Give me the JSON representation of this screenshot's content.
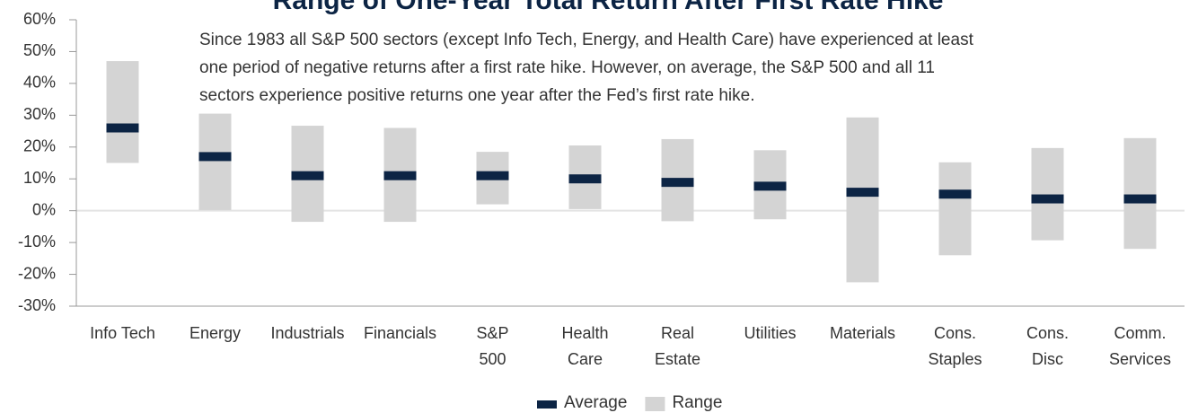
{
  "chart_data": {
    "type": "floating-bar",
    "title": "Range of One-Year Total Return After First Rate Hike",
    "subtitle": [
      "Since 1983 all S&P 500 sectors (except Info Tech, Energy, and Health Care) have experienced at least",
      "one period of negative returns after a first rate hike. However, on average, the S&P 500 and all 11",
      "sectors experience positive returns one year after the Fed’s first rate hike."
    ],
    "categories": [
      [
        "Info Tech"
      ],
      [
        "Energy"
      ],
      [
        "Industrials"
      ],
      [
        "Financials"
      ],
      [
        "S&P",
        "500"
      ],
      [
        "Health",
        "Care"
      ],
      [
        "Real",
        "Estate"
      ],
      [
        "Utilities"
      ],
      [
        "Materials"
      ],
      [
        "Cons.",
        "Staples"
      ],
      [
        "Cons.",
        "Disc"
      ],
      [
        "Comm.",
        "Services"
      ]
    ],
    "series": [
      {
        "name": "Average",
        "color": "#0c2444",
        "values": [
          26,
          17,
          11,
          11,
          11,
          10,
          8.9,
          7.7,
          5.8,
          5.2,
          3.7,
          3.7
        ]
      },
      {
        "name": "Range",
        "color": "#d4d4d4",
        "low": [
          15,
          0.2,
          -3.5,
          -3.5,
          2,
          0.5,
          -3.3,
          -2.7,
          -22.5,
          -14,
          -9.3,
          -12
        ],
        "high": [
          47,
          30.5,
          26.7,
          26,
          18.5,
          20.5,
          22.5,
          19,
          29.3,
          15.2,
          19.7,
          22.8
        ]
      }
    ],
    "ylim": [
      -30,
      60
    ],
    "yticks": [
      {
        "value": -30,
        "label": "-30%"
      },
      {
        "value": -20,
        "label": "-20%"
      },
      {
        "value": -10,
        "label": "-10%"
      },
      {
        "value": 0,
        "label": "0%"
      },
      {
        "value": 10,
        "label": "10%"
      },
      {
        "value": 20,
        "label": "20%"
      },
      {
        "value": 30,
        "label": "30%"
      },
      {
        "value": 40,
        "label": "40%"
      },
      {
        "value": 50,
        "label": "50%"
      },
      {
        "value": 60,
        "label": "60%"
      }
    ],
    "legend": "bottom"
  }
}
